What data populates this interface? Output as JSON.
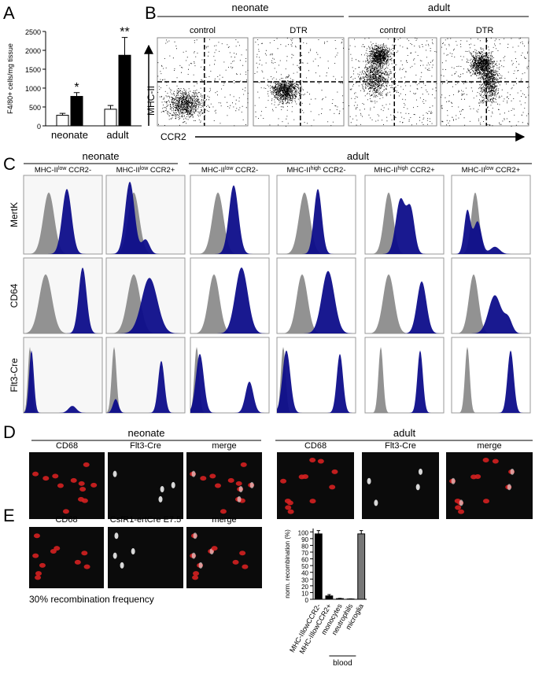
{
  "panel_labels": [
    "A",
    "B",
    "C",
    "D",
    "E"
  ],
  "chart_data": [
    {
      "type": "bar",
      "ylabel": "F4/80+ cells/mg tissue",
      "categories": [
        "neonate",
        "adult"
      ],
      "series": [
        {
          "color": "#ffffff",
          "values": [
            280,
            440
          ],
          "errors": [
            50,
            100
          ]
        },
        {
          "color": "#000000",
          "values": [
            780,
            1870
          ],
          "errors": [
            100,
            470
          ]
        }
      ],
      "significance": [
        "*",
        "**"
      ],
      "ylim": [
        0,
        2500
      ],
      "yticks": [
        0,
        500,
        1000,
        1500,
        2000,
        2500
      ]
    },
    {
      "type": "bar",
      "ylabel": "norm. recombination (%)",
      "categories": [
        "MHC-IIlowCCR2-",
        "MHC-IIlowCCR2+",
        "monocytes",
        "neutrophils",
        "microglia"
      ],
      "values": [
        97,
        5,
        1,
        0.5,
        97
      ],
      "errors": [
        5,
        2,
        0.5,
        0.3,
        5
      ],
      "colors": [
        "#000000",
        "#000000",
        "#000000",
        "#000000",
        "#777777"
      ],
      "group_label": "blood",
      "ylim": [
        0,
        105
      ],
      "yticks": [
        0,
        10,
        20,
        30,
        40,
        50,
        60,
        70,
        80,
        90,
        100
      ]
    }
  ],
  "panel_b": {
    "groups": [
      "neonate",
      "adult"
    ],
    "plots": [
      "control",
      "DTR",
      "control",
      "DTR"
    ],
    "y_axis": "MHC-II",
    "x_axis": "CCR2"
  },
  "panel_c": {
    "groups": [
      "neonate",
      "adult"
    ],
    "columns": [
      {
        "pre": "MHC-II",
        "sup": "low",
        "post": " CCR2-"
      },
      {
        "pre": "MHC-II",
        "sup": "low",
        "post": " CCR2+"
      },
      {
        "pre": "MHC-II",
        "sup": "low",
        "post": " CCR2-"
      },
      {
        "pre": "MHC-II",
        "sup": "high",
        "post": " CCR2-"
      },
      {
        "pre": "MHC-II",
        "sup": "high",
        "post": " CCR2+"
      },
      {
        "pre": "MHC-II",
        "sup": "low",
        "post": " CCR2+"
      }
    ],
    "rows": [
      "MertK",
      "CD64",
      "Flt3-Cre"
    ]
  },
  "panel_d": {
    "groups": [
      "neonate",
      "adult"
    ],
    "images": [
      "CD68",
      "Flt3-Cre",
      "merge",
      "CD68",
      "Flt3-Cre",
      "merge"
    ]
  },
  "panel_e": {
    "images": [
      "CD68",
      "CsfR1-ertCre E7.5",
      "merge"
    ],
    "note": "30% recombination frequency"
  }
}
